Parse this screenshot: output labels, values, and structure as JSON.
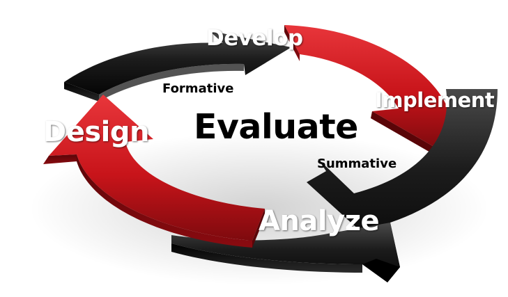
{
  "diagram": {
    "stages": {
      "develop": "Develop",
      "implement": "Implement",
      "analyze": "Analyze",
      "design": "Design"
    },
    "center": "Evaluate",
    "annotations": {
      "formative": "Formative",
      "summative": "Summative"
    }
  },
  "colors": {
    "arrow_red": "#c8141a",
    "arrow_black": "#141414",
    "background": "#ffffff"
  }
}
